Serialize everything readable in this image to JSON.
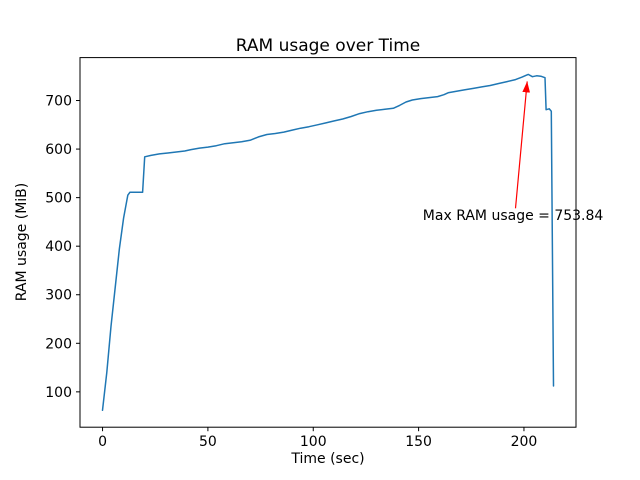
{
  "figure": {
    "background": "#ffffff"
  },
  "chart_data": {
    "type": "line",
    "title": "RAM usage over Time",
    "xlabel": "Time (sec)",
    "ylabel": "RAM usage (MiB)",
    "line_color": "#1f77b4",
    "spine_color": "#000000",
    "xlim": [
      -10.7,
      224.7
    ],
    "ylim": [
      27.2,
      788.4
    ],
    "xticks": [
      0,
      50,
      100,
      150,
      200
    ],
    "yticks": [
      100,
      200,
      300,
      400,
      500,
      600,
      700
    ],
    "annotation": {
      "text": "Max RAM usage = 753.84",
      "color": "#ff0000",
      "xy": [
        202,
        753.84
      ],
      "xytext": [
        152,
        464
      ]
    },
    "points": [
      [
        0,
        62
      ],
      [
        2,
        140
      ],
      [
        4,
        235
      ],
      [
        6,
        315
      ],
      [
        8,
        395
      ],
      [
        10,
        458
      ],
      [
        12,
        505
      ],
      [
        13,
        511
      ],
      [
        19,
        511
      ],
      [
        20,
        584
      ],
      [
        23,
        587
      ],
      [
        27,
        590
      ],
      [
        31,
        592
      ],
      [
        35,
        594
      ],
      [
        39,
        596
      ],
      [
        42,
        599
      ],
      [
        46,
        602
      ],
      [
        50,
        604
      ],
      [
        54,
        607
      ],
      [
        58,
        611
      ],
      [
        62,
        613
      ],
      [
        66,
        615
      ],
      [
        70,
        618
      ],
      [
        74,
        625
      ],
      [
        78,
        630
      ],
      [
        82,
        632
      ],
      [
        86,
        635
      ],
      [
        90,
        639
      ],
      [
        94,
        643
      ],
      [
        98,
        646
      ],
      [
        102,
        650
      ],
      [
        106,
        654
      ],
      [
        110,
        658
      ],
      [
        114,
        662
      ],
      [
        118,
        667
      ],
      [
        122,
        673
      ],
      [
        126,
        677
      ],
      [
        130,
        680
      ],
      [
        134,
        682
      ],
      [
        138,
        684
      ],
      [
        141,
        690
      ],
      [
        144,
        697
      ],
      [
        147,
        701
      ],
      [
        151,
        704
      ],
      [
        155,
        706
      ],
      [
        159,
        708
      ],
      [
        162,
        712
      ],
      [
        164,
        716
      ],
      [
        168,
        719
      ],
      [
        172,
        722
      ],
      [
        176,
        725
      ],
      [
        180,
        728
      ],
      [
        184,
        731
      ],
      [
        188,
        735
      ],
      [
        192,
        739
      ],
      [
        196,
        743
      ],
      [
        199,
        748
      ],
      [
        201,
        752
      ],
      [
        202,
        753.84
      ],
      [
        204,
        749
      ],
      [
        206,
        751
      ],
      [
        208,
        750
      ],
      [
        210,
        747
      ],
      [
        210.5,
        681
      ],
      [
        212,
        683
      ],
      [
        213,
        678
      ],
      [
        214,
        112
      ]
    ]
  }
}
